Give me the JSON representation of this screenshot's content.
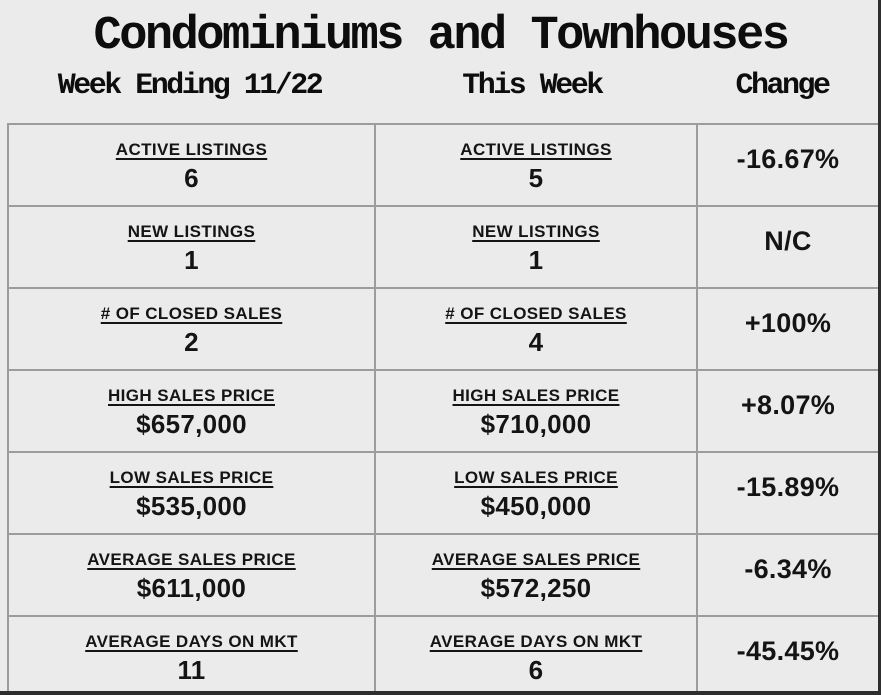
{
  "title": "Condominiums and Townhouses",
  "columns": {
    "last_week": "Week Ending 11/22",
    "this_week": "This Week",
    "change": "Change"
  },
  "rows": [
    {
      "label": "ACTIVE LISTINGS",
      "last_week": "6",
      "this_week": "5",
      "change": "-16.67%"
    },
    {
      "label": "NEW LISTINGS",
      "last_week": "1",
      "this_week": "1",
      "change": "N/C"
    },
    {
      "label": "# OF CLOSED SALES",
      "last_week": "2",
      "this_week": "4",
      "change": "+100%"
    },
    {
      "label": "HIGH SALES PRICE",
      "last_week": "$657,000",
      "this_week": "$710,000",
      "change": "+8.07%"
    },
    {
      "label": "LOW SALES PRICE",
      "last_week": "$535,000",
      "this_week": "$450,000",
      "change": "-15.89%"
    },
    {
      "label": "AVERAGE SALES PRICE",
      "last_week": "$611,000",
      "this_week": "$572,250",
      "change": "-6.34%"
    },
    {
      "label": "AVERAGE DAYS ON MKT",
      "last_week": "11",
      "this_week": "6",
      "change": "-45.45%"
    }
  ],
  "colors": {
    "background": "#ebebeb",
    "table_border": "#9c9c9c",
    "text": "#141414",
    "page_edge": "#2e2e2e"
  }
}
